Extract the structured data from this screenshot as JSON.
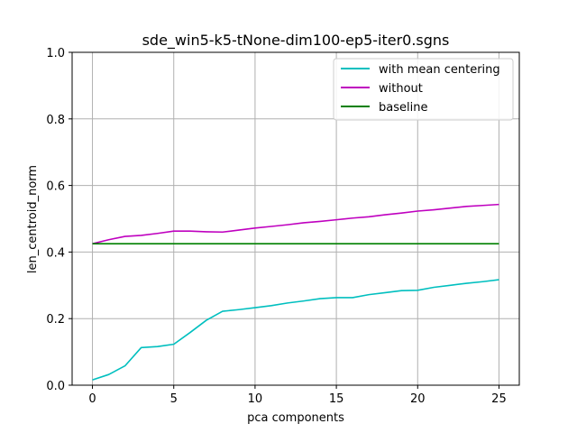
{
  "chart_data": {
    "type": "line",
    "title": "sde_win5-k5-tNone-dim100-ep5-iter0.sgns",
    "xlabel": "pca components",
    "ylabel": "len_centroid_norm",
    "xlim": [
      -1.25,
      26.25
    ],
    "ylim": [
      0.0,
      1.0
    ],
    "xticks": [
      0,
      5,
      10,
      15,
      20,
      25
    ],
    "yticks": [
      0.0,
      0.2,
      0.4,
      0.6,
      0.8,
      1.0
    ],
    "xtick_labels": [
      "0",
      "5",
      "10",
      "15",
      "20",
      "25"
    ],
    "ytick_labels": [
      "0.0",
      "0.2",
      "0.4",
      "0.6",
      "0.8",
      "1.0"
    ],
    "grid": true,
    "legend_position": "top-right",
    "x": [
      0,
      1,
      2,
      3,
      4,
      5,
      6,
      7,
      8,
      9,
      10,
      11,
      12,
      13,
      14,
      15,
      16,
      17,
      18,
      19,
      20,
      21,
      22,
      23,
      24,
      25
    ],
    "series": [
      {
        "name": "with mean centering",
        "color": "#00bfbf",
        "values": [
          0.016,
          0.032,
          0.058,
          0.113,
          0.116,
          0.123,
          0.158,
          0.195,
          0.222,
          0.227,
          0.233,
          0.239,
          0.247,
          0.253,
          0.26,
          0.263,
          0.263,
          0.272,
          0.278,
          0.284,
          0.285,
          0.294,
          0.3,
          0.306,
          0.311,
          0.317
        ]
      },
      {
        "name": "without",
        "color": "#bf00bf",
        "values": [
          0.425,
          0.437,
          0.447,
          0.45,
          0.456,
          0.463,
          0.463,
          0.461,
          0.46,
          0.466,
          0.472,
          0.477,
          0.482,
          0.488,
          0.492,
          0.497,
          0.502,
          0.506,
          0.512,
          0.517,
          0.523,
          0.527,
          0.532,
          0.537,
          0.54,
          0.543
        ]
      },
      {
        "name": "baseline",
        "color": "#008000",
        "values": [
          0.425,
          0.425,
          0.425,
          0.425,
          0.425,
          0.425,
          0.425,
          0.425,
          0.425,
          0.425,
          0.425,
          0.425,
          0.425,
          0.425,
          0.425,
          0.425,
          0.425,
          0.425,
          0.425,
          0.425,
          0.425,
          0.425,
          0.425,
          0.425,
          0.425,
          0.425
        ]
      }
    ]
  }
}
